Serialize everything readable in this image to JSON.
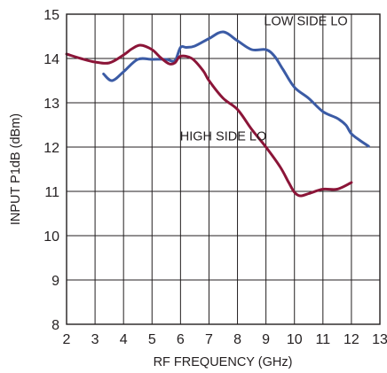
{
  "chart_data": {
    "type": "line",
    "xlabel": "RF FREQUENCY (GHz)",
    "ylabel": "INPUT P1dB (dBm)",
    "xlim": [
      2,
      13
    ],
    "ylim": [
      8,
      15
    ],
    "xticks": [
      2,
      3,
      4,
      5,
      6,
      7,
      8,
      9,
      10,
      11,
      12,
      13
    ],
    "yticks": [
      8,
      9,
      10,
      11,
      12,
      13,
      14,
      15
    ],
    "grid": true,
    "series": [
      {
        "name": "LOW SIDE LO",
        "color": "#3b5ba5",
        "x": [
          3.3,
          3.6,
          4.0,
          4.5,
          5.0,
          5.5,
          5.8,
          6.0,
          6.2,
          6.5,
          7.0,
          7.5,
          8.0,
          8.5,
          9.0,
          9.3,
          9.6,
          10.0,
          10.5,
          11.0,
          11.5,
          11.8,
          12.0,
          12.3,
          12.6
        ],
        "y": [
          13.65,
          13.5,
          13.7,
          13.98,
          13.98,
          13.98,
          13.95,
          14.25,
          14.25,
          14.28,
          14.45,
          14.6,
          14.4,
          14.2,
          14.2,
          14.05,
          13.75,
          13.35,
          13.1,
          12.8,
          12.65,
          12.5,
          12.3,
          12.15,
          12.02
        ]
      },
      {
        "name": "HIGH SIDE LO",
        "color": "#8b1538",
        "x": [
          2.0,
          2.5,
          3.0,
          3.5,
          4.0,
          4.3,
          4.6,
          5.0,
          5.3,
          5.6,
          5.8,
          6.0,
          6.4,
          6.8,
          7.0,
          7.5,
          8.0,
          8.5,
          9.0,
          9.5,
          9.8,
          10.0,
          10.2,
          10.5,
          11.0,
          11.5,
          12.0
        ],
        "y": [
          14.1,
          14.0,
          13.92,
          13.9,
          14.08,
          14.22,
          14.3,
          14.2,
          14.02,
          13.88,
          13.9,
          14.05,
          14.0,
          13.72,
          13.5,
          13.1,
          12.85,
          12.4,
          12.0,
          11.55,
          11.2,
          10.98,
          10.9,
          10.95,
          11.05,
          11.05,
          11.2
        ]
      }
    ],
    "annotations": [
      {
        "text": "LOW SIDE LO",
        "x": 10.4,
        "y": 14.75
      },
      {
        "text": "HIGH SIDE LO",
        "x": 7.5,
        "y": 12.15
      }
    ]
  }
}
